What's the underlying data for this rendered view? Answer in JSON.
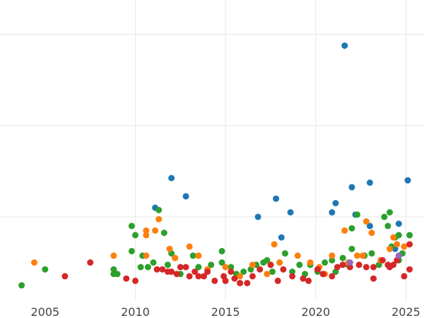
{
  "chart_data": {
    "type": "scatter",
    "title": "",
    "xlabel": "",
    "ylabel": "",
    "xlim": [
      2002.5,
      2026.0
    ],
    "ylim": [
      -0.5,
      12.5
    ],
    "grid": true,
    "x_gridlines": [
      2010,
      2015,
      2020,
      2025
    ],
    "y_gridlines": [
      3,
      7,
      11
    ],
    "x_ticks": [
      2005,
      2010,
      2015,
      2020,
      2025
    ],
    "x_tick_labels": [
      "2005",
      "2010",
      "2015",
      "2020",
      "2025"
    ],
    "legend": "none",
    "series": [
      {
        "color": "#1f77b4",
        "points": [
          [
            2021.6,
            10.5
          ],
          [
            2012.0,
            4.7
          ],
          [
            2012.8,
            3.9
          ],
          [
            2011.1,
            3.4
          ],
          [
            2016.8,
            3.0
          ],
          [
            2017.8,
            3.8
          ],
          [
            2018.6,
            3.2
          ],
          [
            2021.1,
            3.6
          ],
          [
            2020.9,
            3.2
          ],
          [
            2022.0,
            4.3
          ],
          [
            2023.0,
            4.5
          ],
          [
            2022.2,
            3.1
          ],
          [
            2023.0,
            2.6
          ],
          [
            2024.6,
            2.7
          ],
          [
            2025.1,
            4.6
          ],
          [
            2018.1,
            2.1
          ],
          [
            2024.4,
            1.6
          ]
        ]
      },
      {
        "color": "#2ca02c",
        "points": [
          [
            2003.7,
            0.0
          ],
          [
            2005.0,
            0.7
          ],
          [
            2008.8,
            0.7
          ],
          [
            2008.8,
            0.5
          ],
          [
            2009.0,
            0.5
          ],
          [
            2009.8,
            2.6
          ],
          [
            2009.8,
            1.5
          ],
          [
            2010.0,
            2.2
          ],
          [
            2010.3,
            0.8
          ],
          [
            2010.4,
            1.3
          ],
          [
            2010.7,
            0.8
          ],
          [
            2011.0,
            1.0
          ],
          [
            2011.3,
            3.3
          ],
          [
            2011.6,
            2.3
          ],
          [
            2011.8,
            0.9
          ],
          [
            2012.0,
            1.4
          ],
          [
            2012.2,
            1.2
          ],
          [
            2012.5,
            0.5
          ],
          [
            2013.2,
            1.3
          ],
          [
            2013.5,
            0.8
          ],
          [
            2014.2,
            0.9
          ],
          [
            2014.8,
            1.5
          ],
          [
            2014.8,
            1.0
          ],
          [
            2015.3,
            0.8
          ],
          [
            2015.6,
            0.5
          ],
          [
            2016.0,
            0.6
          ],
          [
            2016.4,
            0.7
          ],
          [
            2016.7,
            0.9
          ],
          [
            2017.1,
            1.0
          ],
          [
            2017.3,
            1.1
          ],
          [
            2017.6,
            0.6
          ],
          [
            2018.0,
            1.0
          ],
          [
            2018.3,
            1.4
          ],
          [
            2018.7,
            0.6
          ],
          [
            2019.1,
            0.9
          ],
          [
            2019.4,
            0.5
          ],
          [
            2019.7,
            0.9
          ],
          [
            2020.1,
            0.6
          ],
          [
            2020.5,
            1.0
          ],
          [
            2020.9,
            1.1
          ],
          [
            2021.1,
            0.6
          ],
          [
            2021.5,
            1.2
          ],
          [
            2021.8,
            0.9
          ],
          [
            2022.0,
            1.6
          ],
          [
            2022.0,
            2.5
          ],
          [
            2022.3,
            3.1
          ],
          [
            2022.7,
            1.3
          ],
          [
            2023.1,
            1.4
          ],
          [
            2023.5,
            0.9
          ],
          [
            2023.8,
            3.0
          ],
          [
            2024.0,
            2.6
          ],
          [
            2024.1,
            3.2
          ],
          [
            2024.2,
            1.7
          ],
          [
            2024.4,
            2.1
          ],
          [
            2024.6,
            2.2
          ],
          [
            2024.8,
            1.4
          ],
          [
            2025.2,
            2.2
          ],
          [
            2024.6,
            1.1
          ]
        ]
      },
      {
        "color": "#ff7f0e",
        "points": [
          [
            2004.4,
            1.0
          ],
          [
            2008.8,
            1.3
          ],
          [
            2010.6,
            2.4
          ],
          [
            2010.6,
            2.2
          ],
          [
            2010.6,
            1.3
          ],
          [
            2011.1,
            2.4
          ],
          [
            2011.3,
            2.9
          ],
          [
            2011.9,
            1.6
          ],
          [
            2012.2,
            1.2
          ],
          [
            2013.0,
            1.7
          ],
          [
            2013.5,
            1.3
          ],
          [
            2014.0,
            0.7
          ],
          [
            2015.0,
            0.8
          ],
          [
            2015.8,
            0.4
          ],
          [
            2016.5,
            0.9
          ],
          [
            2017.3,
            0.5
          ],
          [
            2017.7,
            1.8
          ],
          [
            2018.0,
            1.0
          ],
          [
            2019.0,
            1.3
          ],
          [
            2019.7,
            1.0
          ],
          [
            2020.2,
            0.8
          ],
          [
            2020.5,
            0.5
          ],
          [
            2020.9,
            1.3
          ],
          [
            2021.6,
            2.4
          ],
          [
            2021.8,
            1.0
          ],
          [
            2022.3,
            1.3
          ],
          [
            2022.6,
            1.3
          ],
          [
            2022.8,
            2.8
          ],
          [
            2023.1,
            2.3
          ],
          [
            2023.6,
            1.1
          ],
          [
            2024.1,
            1.6
          ],
          [
            2024.3,
            2.1
          ],
          [
            2024.5,
            1.8
          ],
          [
            2024.9,
            1.7
          ]
        ]
      },
      {
        "color": "#d62728",
        "points": [
          [
            2006.1,
            0.4
          ],
          [
            2007.5,
            1.0
          ],
          [
            2009.5,
            0.3
          ],
          [
            2010.0,
            0.2
          ],
          [
            2011.2,
            0.7
          ],
          [
            2011.5,
            0.7
          ],
          [
            2011.8,
            0.6
          ],
          [
            2012.0,
            0.6
          ],
          [
            2012.3,
            0.5
          ],
          [
            2012.5,
            0.8
          ],
          [
            2012.8,
            0.8
          ],
          [
            2013.0,
            0.4
          ],
          [
            2013.3,
            0.6
          ],
          [
            2013.5,
            0.4
          ],
          [
            2013.8,
            0.4
          ],
          [
            2014.0,
            0.6
          ],
          [
            2014.4,
            0.2
          ],
          [
            2014.9,
            0.4
          ],
          [
            2015.0,
            0.2
          ],
          [
            2015.3,
            0.6
          ],
          [
            2015.5,
            0.3
          ],
          [
            2015.8,
            0.1
          ],
          [
            2016.2,
            0.1
          ],
          [
            2016.5,
            0.4
          ],
          [
            2016.9,
            0.7
          ],
          [
            2017.5,
            0.9
          ],
          [
            2017.9,
            0.2
          ],
          [
            2018.2,
            0.7
          ],
          [
            2018.7,
            0.4
          ],
          [
            2019.3,
            0.3
          ],
          [
            2019.6,
            0.2
          ],
          [
            2020.1,
            0.7
          ],
          [
            2020.4,
            0.5
          ],
          [
            2020.9,
            0.4
          ],
          [
            2021.2,
            0.8
          ],
          [
            2021.5,
            0.9
          ],
          [
            2021.9,
            0.8
          ],
          [
            2022.4,
            0.9
          ],
          [
            2022.8,
            0.8
          ],
          [
            2023.2,
            0.8
          ],
          [
            2023.2,
            0.3
          ],
          [
            2023.7,
            1.1
          ],
          [
            2024.0,
            0.9
          ],
          [
            2024.1,
            0.8
          ],
          [
            2024.5,
            1.1
          ],
          [
            2024.9,
            0.4
          ],
          [
            2025.2,
            0.7
          ],
          [
            2025.2,
            1.8
          ],
          [
            2024.3,
            0.9
          ]
        ]
      },
      {
        "color": "#9467bd",
        "points": [
          [
            2021.9,
            1.0
          ],
          [
            2024.6,
            1.3
          ]
        ]
      }
    ]
  }
}
